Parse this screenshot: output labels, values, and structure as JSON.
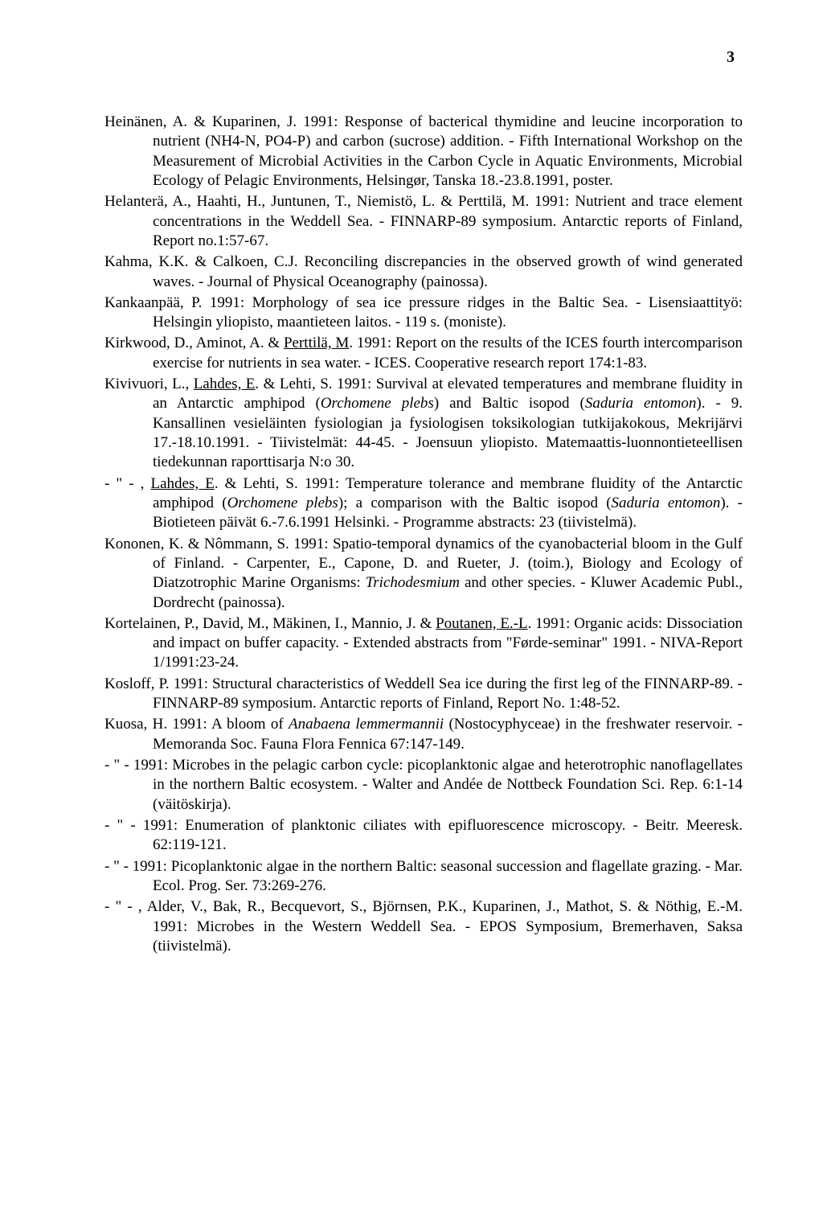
{
  "page_number": "3",
  "entries": [
    {
      "html": "Heinänen, A. & Kuparinen, J. 1991: Response of bacterical thymidine and leucine incorporation to nutrient (NH4-N, PO4-P) and carbon (sucrose) addition. - Fifth International Workshop on the Measurement of Microbial Activities in the Carbon Cycle in Aquatic Environments, Microbial Ecology of Pelagic Environments, Helsingør, Tanska 18.-23.8.1991, poster."
    },
    {
      "html": "Helanterä, A., Haahti, H., Juntunen, T., Niemistö, L. & Perttilä, M. 1991: Nutrient and trace element concentrations in the Weddell Sea. - FINNARP-89 symposium. Antarctic reports of Finland, Report no.1:57-67."
    },
    {
      "html": "Kahma, K.K. & Calkoen, C.J. Reconciling discrepancies in the observed growth of wind generated waves. - Journal of Physical Oceanography (painossa)."
    },
    {
      "html": "Kankaanpää, P. 1991: Morphology of sea ice pressure ridges in the Baltic Sea. - Lisensiaattityö: Helsingin yliopisto, maantieteen laitos. - 119 s. (moniste)."
    },
    {
      "html": "Kirkwood, D., Aminot, A. & <span class=\"u\">Perttilä, M</span>. 1991: Report on the results of the ICES fourth intercomparison exercise for nutrients in sea water. - ICES. Cooperative research report 174:1-83."
    },
    {
      "html": "Kivivuori, L., <span class=\"u\">Lahdes, E</span>. & Lehti, S. 1991: Survival at elevated temperatures and membrane fluidity in an Antarctic amphipod (<span class=\"i\">Orchomene plebs</span>) and Baltic isopod (<span class=\"i\">Saduria entomon</span>). - 9. Kansallinen vesieläinten fysiologian ja fysiologisen toksikologian tutkijakokous, Mekrijärvi 17.-18.10.1991. - Tiivistelmät: 44-45. - Joensuun yliopisto. Matemaattis-luonnontieteellisen tiedekunnan raporttisarja N:o 30."
    },
    {
      "html": "- \" - , <span class=\"u\">Lahdes, E</span>. & Lehti, S. 1991: Temperature tolerance and membrane fluidity of the Antarctic amphipod (<span class=\"i\">Orchomene plebs</span>); a comparison with the Baltic isopod (<span class=\"i\">Saduria entomon</span>). - Biotieteen päivät 6.-7.6.1991 Helsinki. - Programme abstracts: 23 (tiivistelmä)."
    },
    {
      "html": "Kononen, K. & Nômmann, S. 1991: Spatio-temporal dynamics of the cyanobacterial bloom in the Gulf of Finland. - Carpenter, E., Capone, D. and Rueter, J. (toim.), Biology and Ecology of Diatzotrophic Marine Organisms: <span class=\"i\">Trichodesmium</span> and other species. - Kluwer Academic Publ., Dordrecht (painossa)."
    },
    {
      "html": "Kortelainen, P., David, M., Mäkinen, I., Mannio, J. & <span class=\"u\">Poutanen, E.-L</span>. 1991: Organic acids: Dissociation and impact on buffer capacity. - Extended abstracts from \"Førde-seminar\" 1991. - NIVA-Report 1/1991:23-24."
    },
    {
      "html": "Kosloff, P. 1991: Structural characteristics of Weddell Sea ice during the first leg of the FINNARP-89. - FINNARP-89 symposium. Antarctic reports of Finland, Report No. 1:48-52."
    },
    {
      "html": "Kuosa, H. 1991: A bloom of <span class=\"i\">Anabaena lemmermannii</span> (Nostocyphyceae) in the freshwater reservoir. - Memoranda Soc. Fauna Flora Fennica 67:147-149."
    },
    {
      "html": "- \" - 1991: Microbes in the pelagic carbon cycle: picoplanktonic algae and heterotrophic nanoflagellates in the northern Baltic ecosystem. - Walter and Andée de Nottbeck Foundation Sci. Rep. 6:1-14 (väitöskirja)."
    },
    {
      "html": "- \" - 1991: Enumeration of planktonic ciliates with epifluorescence microscopy. - Beitr. Meeresk. 62:119-121."
    },
    {
      "html": "- \" - 1991: Picoplanktonic algae in the northern Baltic: seasonal succession and flagellate grazing. - Mar. Ecol. Prog. Ser. 73:269-276."
    },
    {
      "html": "- \" - , Alder, V., Bak, R., Becquevort, S., Björnsen, P.K., Kuparinen, J., Mathot, S. & Nöthig, E.-M. 1991: Microbes in the Western Weddell Sea. - EPOS Symposium, Bremerhaven, Saksa (tiivistelmä)."
    }
  ]
}
